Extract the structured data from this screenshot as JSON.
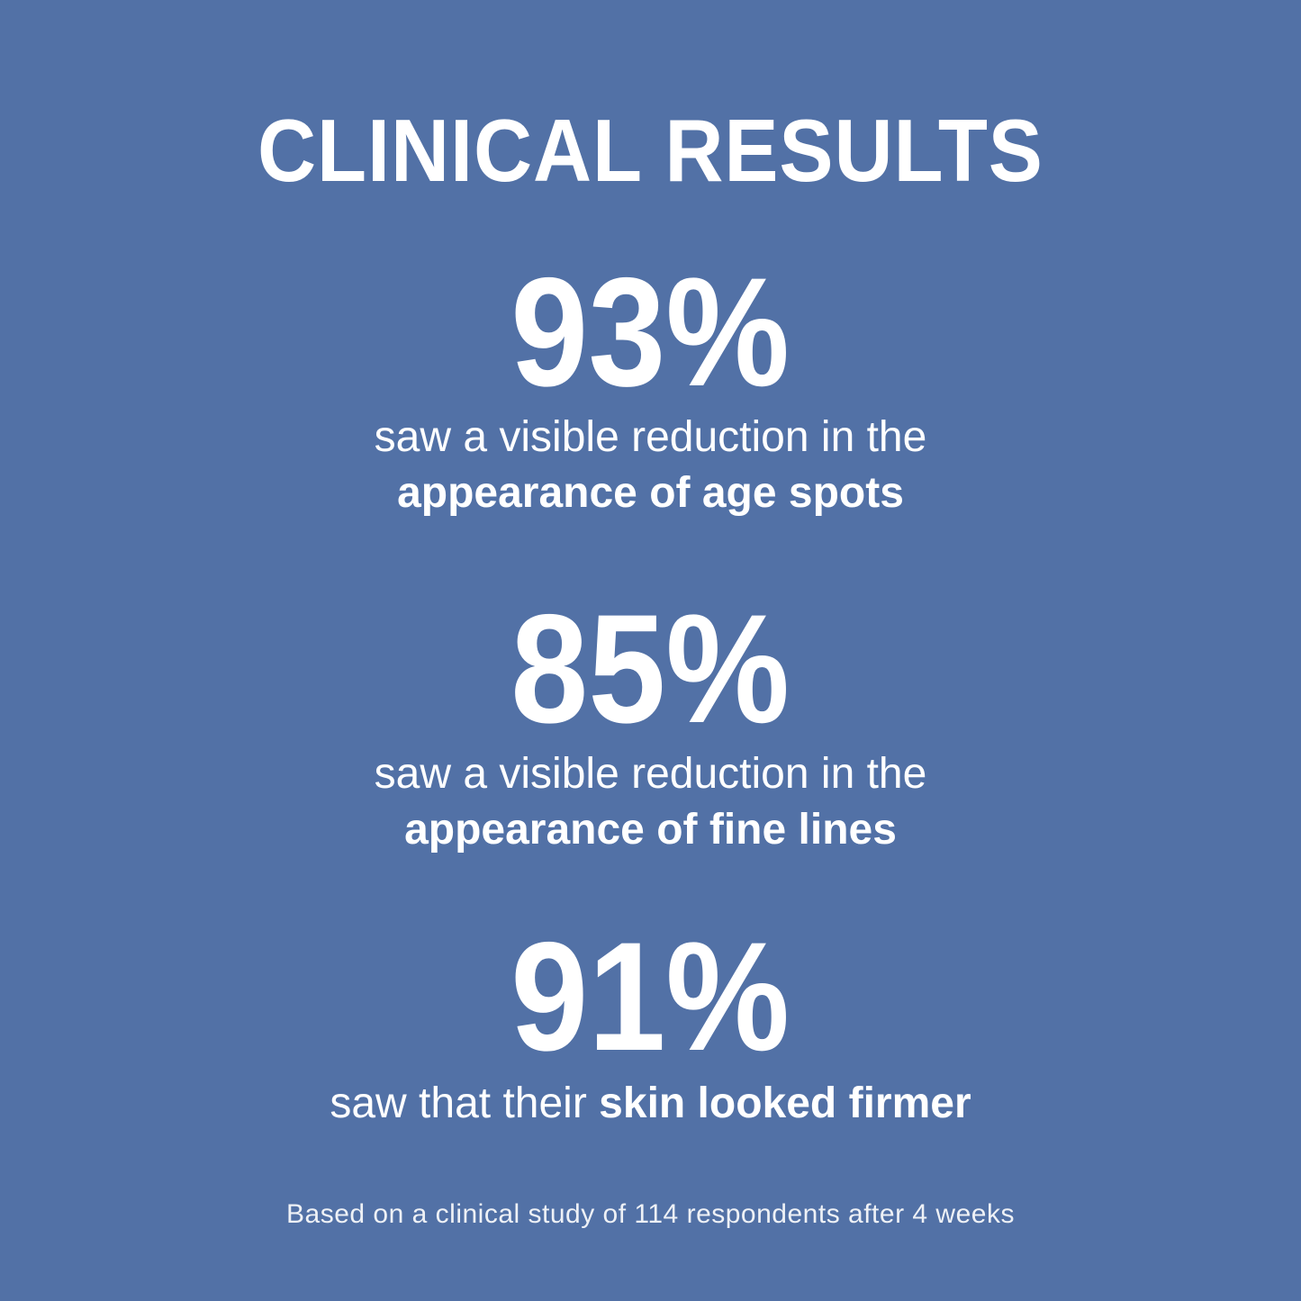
{
  "theme": {
    "background": "#5271A6",
    "text": "#FFFFFF"
  },
  "title": "CLINICAL RESULTS",
  "stats": [
    {
      "value": "93%",
      "line_regular": "saw a visible reduction in the",
      "line_bold": "appearance of age spots"
    },
    {
      "value": "85%",
      "line_regular": "saw a visible reduction in the",
      "line_bold": "appearance of fine lines"
    },
    {
      "value": "91%",
      "line_regular": "saw that their",
      "line_bold": "skin looked firmer"
    }
  ],
  "footnote": "Based on a clinical study of 114 respondents after 4 weeks"
}
